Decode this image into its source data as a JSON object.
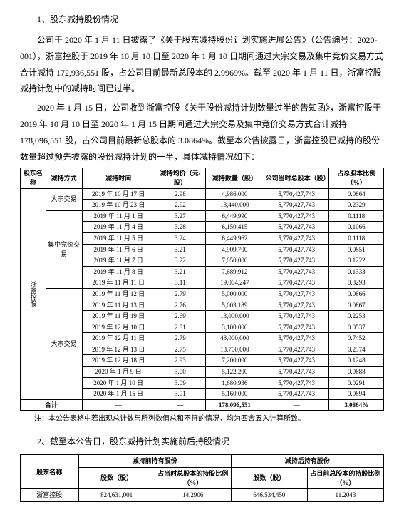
{
  "section1": {
    "title": "1、股东减持股份情况",
    "p1": "公司于 2020 年 1 月 11 日披露了《关于股东减持股份计划实施进展公告》（公告编号：2020-001），浙富控股于 2019 年 10 月 10 日至 2020 年 1 月 10 日期间通过大宗交易及集中竞价交易方式合计减持 172,936,551 股，占公司目前最新总股本的 2.9969%。截至 2020 年 1 月 11 日，浙富控股减持计划中的减持时间已过半。",
    "p2": "2020 年 1 月 15 日，公司收到浙富控股《关于股份减持计划数量过半的告知函》，浙富控股于 2019 年 10 月 10 日至 2020 年 1 月 15 日期间通过大宗交易及集中竞价交易方式合计减持 178,096,551 股，占公司目前最新总股本的 3.0864%。截至本公告披露日，浙富控股已减持的股份数量超过预先披露的股份减持计划的一半，具体减持情况如下："
  },
  "table1": {
    "headers": {
      "shareholder": "股东名称",
      "method": "减持方式",
      "date": "减持时间",
      "price": "减持均价（元/股）",
      "qty": "减持数量（股）",
      "cap": "公司当时总股本（股）",
      "pct": "占总股本比例（%）"
    },
    "shareholder": "浙富控股",
    "methods": {
      "bulk": "大宗交易",
      "bid": "集中竞价交易"
    },
    "rows": [
      {
        "date": "2019 年 10 月 17 日",
        "price": "2.98",
        "qty": "4,986,000",
        "cap": "5,770,427,743",
        "pct": "0.0864"
      },
      {
        "date": "2019 年 10 月 23 日",
        "price": "2.92",
        "qty": "13,440,000",
        "cap": "5,770,427,743",
        "pct": "0.2329"
      },
      {
        "date": "2019 年 11 月 1 日",
        "price": "3.27",
        "qty": "6,449,990",
        "cap": "5,770,427,743",
        "pct": "0.1118"
      },
      {
        "date": "2019 年 11 月 4 日",
        "price": "3.28",
        "qty": "6,150,415",
        "cap": "5,770,427,743",
        "pct": "0.1066"
      },
      {
        "date": "2019 年 11 月 5 日",
        "price": "3.24",
        "qty": "6,449,962",
        "cap": "5,770,427,743",
        "pct": "0.1118"
      },
      {
        "date": "2019 年 11 月 6 日",
        "price": "3.21",
        "qty": "4,909,700",
        "cap": "5,770,427,743",
        "pct": "0.0851"
      },
      {
        "date": "2019 年 11 月 7 日",
        "price": "3.22",
        "qty": "7,050,000",
        "cap": "5,770,427,743",
        "pct": "0.1222"
      },
      {
        "date": "2019 年 11 月 8 日",
        "price": "3.21",
        "qty": "7,689,912",
        "cap": "5,770,427,743",
        "pct": "0.1333"
      },
      {
        "date": "2019 年 11 月 11 日",
        "price": "3.11",
        "qty": "19,004,247",
        "cap": "5,770,427,743",
        "pct": "0.3293"
      },
      {
        "date": "2019 年 11 月 12 日",
        "price": "2.79",
        "qty": "5,000,000",
        "cap": "5,770,427,743",
        "pct": "0.0866"
      },
      {
        "date": "2019 年 11 月 13 日",
        "price": "2.76",
        "qty": "5,003,189",
        "cap": "5,770,427,743",
        "pct": "0.0867"
      },
      {
        "date": "2019 年 11 月 19 日",
        "price": "2.69",
        "qty": "13,000,000",
        "cap": "5,770,427,743",
        "pct": "0.2253"
      },
      {
        "date": "2019 年 12 月 10 日",
        "price": "2.81",
        "qty": "3,100,000",
        "cap": "5,770,427,743",
        "pct": "0.0537"
      },
      {
        "date": "2019 年 12 月 11 日",
        "price": "2.79",
        "qty": "43,000,000",
        "cap": "5,770,427,743",
        "pct": "0.7452"
      },
      {
        "date": "2019 年 12 月 13 日",
        "price": "2.75",
        "qty": "13,700,000",
        "cap": "5,770,427,743",
        "pct": "0.2374"
      },
      {
        "date": "2019 年 12 月 18 日",
        "price": "2.93",
        "qty": "7,200,000",
        "cap": "5,770,427,743",
        "pct": "0.1248"
      },
      {
        "date": "2020 年 1 月 9 日",
        "price": "3.00",
        "qty": "5,122,200",
        "cap": "5,770,427,743",
        "pct": "0.0888"
      },
      {
        "date": "2020 年 1 月 10 日",
        "price": "3.09",
        "qty": "1,680,936",
        "cap": "5,770,427,743",
        "pct": "0.0291"
      },
      {
        "date": "2020 年 1 月 15 日",
        "price": "3.01",
        "qty": "5,160,000",
        "cap": "5,770,427,743",
        "pct": "0.0894"
      }
    ],
    "total": {
      "label": "合计",
      "dash": "—",
      "qty": "178,096,551",
      "pct": "3.0864%"
    },
    "note": "注：本公告表格中若出现总计数与所列数值总和不符的情况，均为四舍五入计算所致。"
  },
  "section2": {
    "title": "2、截至本公告日，股东减持计划实施前后持股情况"
  },
  "table2": {
    "headers": {
      "name": "股东名称",
      "before": "减持前持有股份",
      "after": "减持后持有股份",
      "shares": "股数（股）",
      "pct_before": "占当时总股本的持股比例（%）",
      "pct_after": "占目前总股本的持股比例（%）"
    },
    "row": {
      "name": "浙富控股",
      "before_shares": "824,631,001",
      "before_pct": "14.2906",
      "after_shares": "646,534,450",
      "after_pct": "11.2043"
    }
  }
}
